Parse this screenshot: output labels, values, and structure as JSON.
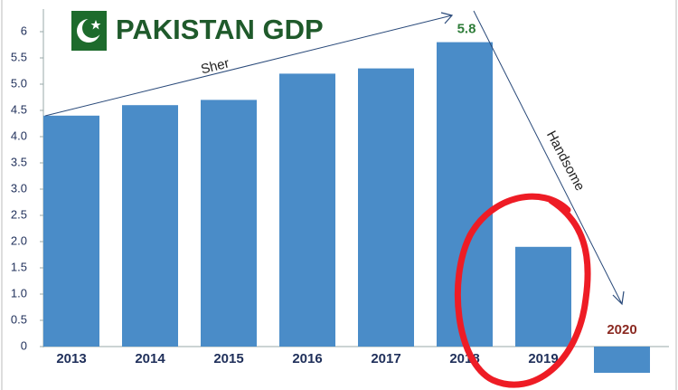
{
  "chart_data": {
    "type": "bar",
    "title": "PAKISTAN GDP",
    "annotations": [
      "Sher",
      "Handsome"
    ],
    "categories": [
      "2013",
      "2014",
      "2015",
      "2016",
      "2017",
      "2018",
      "2019",
      "2020"
    ],
    "values": [
      4.4,
      4.6,
      4.7,
      5.2,
      5.3,
      5.8,
      1.9,
      -0.5
    ],
    "color": "#4a8cc8",
    "ylim": [
      -0.8,
      6.2
    ],
    "yticks": [
      0,
      0.5,
      {
        "value": 1,
        "label": "1.0"
      },
      1.5,
      {
        "value": 2,
        "label": "2.0"
      },
      2.5,
      {
        "value": 3,
        "label": "3.0"
      },
      3.5,
      {
        "value": 4,
        "label": "4.0"
      },
      4.5,
      {
        "value": 5,
        "label": "5.0"
      },
      5.5,
      6
    ]
  }
}
